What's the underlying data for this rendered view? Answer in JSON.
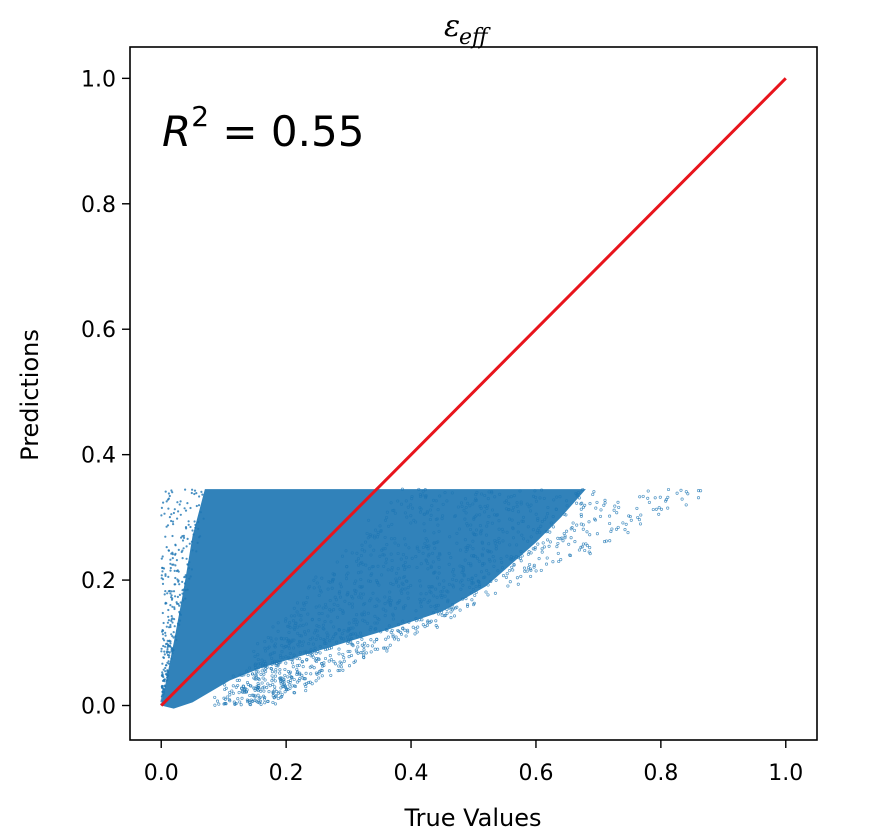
{
  "chart_data": {
    "type": "scatter",
    "title": {
      "symbol": "ε",
      "subscript": "eff"
    },
    "xlabel": "True Values",
    "ylabel": "Predictions",
    "xlim": [
      -0.05,
      1.05
    ],
    "ylim": [
      -0.055,
      1.05
    ],
    "xticks": [
      "0.0",
      "0.2",
      "0.4",
      "0.6",
      "0.8",
      "1.0"
    ],
    "yticks": [
      "0.0",
      "0.2",
      "0.4",
      "0.6",
      "0.8",
      "1.0"
    ],
    "grid": false,
    "annotation": {
      "base": "R",
      "sup": "2",
      "rest": " = 0.55"
    },
    "colors": {
      "points": "#1f77b4",
      "line": "#e8141c",
      "axes": "#000000"
    },
    "series": [
      {
        "kind": "scatter",
        "point_count_shown": "many",
        "dense_region": {
          "x_min": 0.0,
          "x_max": 0.5,
          "y_min": 0.0,
          "y_max": 0.345
        },
        "sparse_tail_x_max": 0.98,
        "prediction_cap": 0.345
      },
      {
        "kind": "line",
        "x": [
          0.0,
          1.0
        ],
        "y": [
          0.0,
          1.0
        ]
      }
    ]
  }
}
